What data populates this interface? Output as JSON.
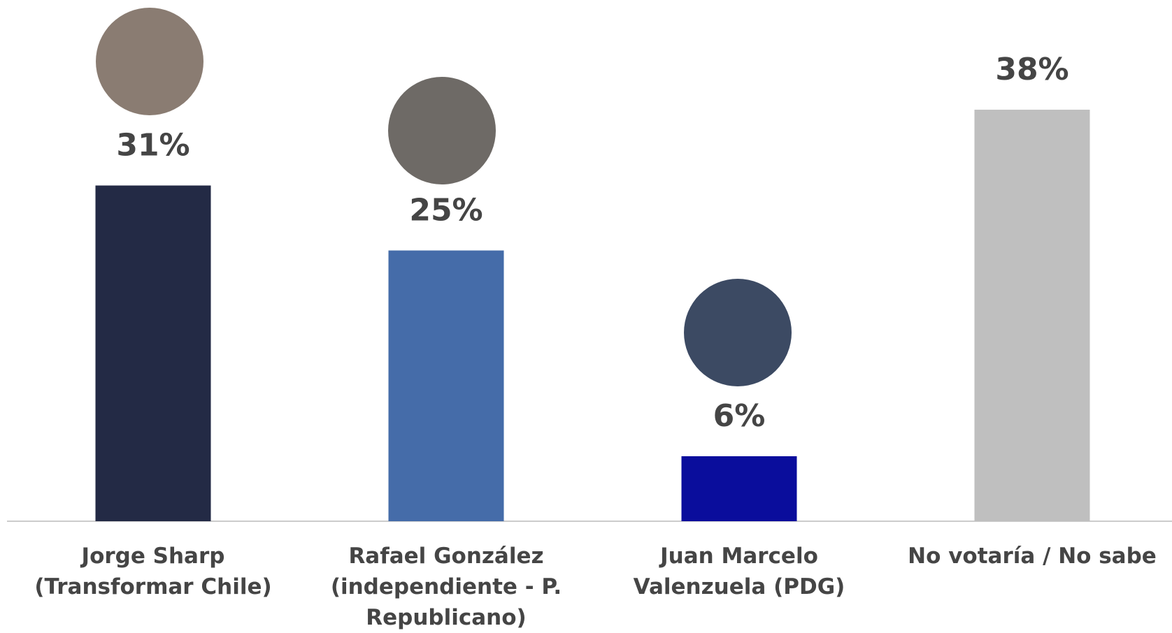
{
  "chart_data": {
    "type": "bar",
    "categories": [
      "Jorge Sharp\n(Transformar Chile)",
      "Rafael González\n(independiente - P.\nRepublicano)",
      "Juan Marcelo\nValenzuela (PDG)",
      "No votaría / No sabe"
    ],
    "values": [
      31,
      25,
      6,
      38
    ],
    "value_labels": [
      "31%",
      "25%",
      "6%",
      "38%"
    ],
    "colors": [
      "#232a45",
      "#456ca9",
      "#0a0d9c",
      "#bfbfbf"
    ]
  }
}
